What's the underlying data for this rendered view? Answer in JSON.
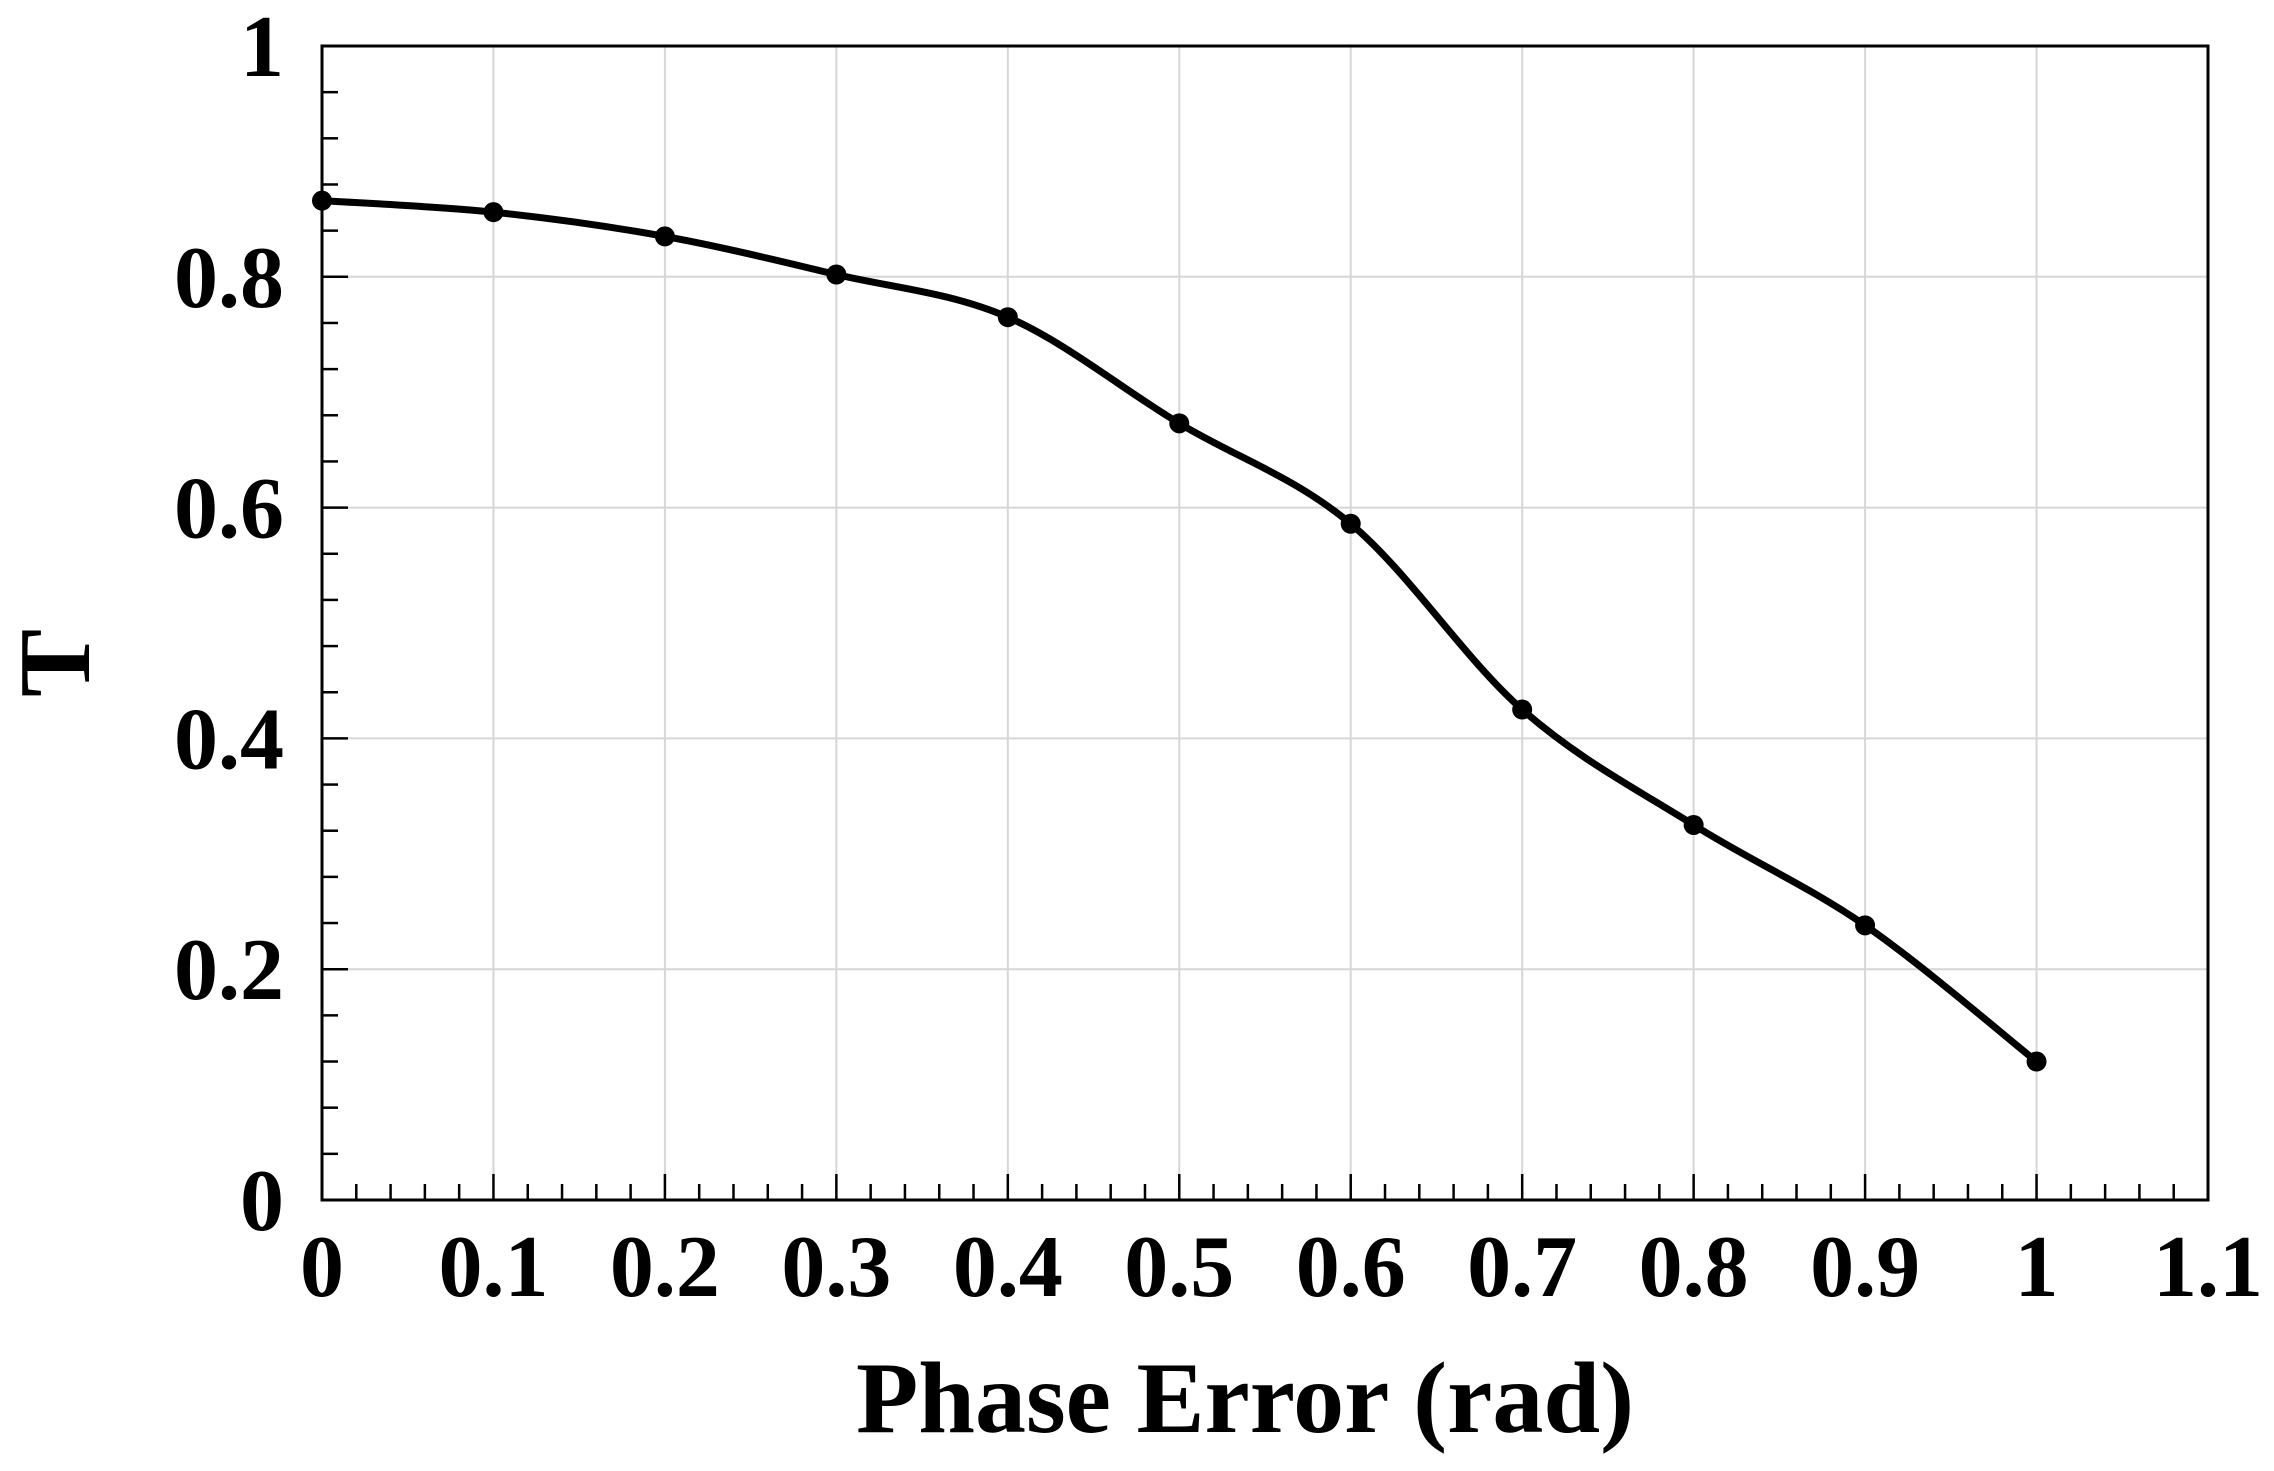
{
  "chart_data": {
    "type": "line",
    "title": "",
    "xlabel": "Phase Error (rad)",
    "ylabel": "T",
    "xlim": [
      0,
      1.1
    ],
    "ylim": [
      0,
      1
    ],
    "x_ticks": [
      0,
      0.1,
      0.2,
      0.3,
      0.4,
      0.5,
      0.6,
      0.7,
      0.8,
      0.9,
      1,
      1.1
    ],
    "x_tick_labels": [
      "0",
      "0.1",
      "0.2",
      "0.3",
      "0.4",
      "0.5",
      "0.6",
      "0.7",
      "0.8",
      "0.9",
      "1",
      "1.1"
    ],
    "y_ticks": [
      0,
      0.2,
      0.4,
      0.6,
      0.8,
      1
    ],
    "y_tick_labels": [
      "0",
      "0.2",
      "0.4",
      "0.6",
      "0.8",
      "1"
    ],
    "x_minor_step": 0.02,
    "y_minor_step": 0.04,
    "grid": true,
    "colors": {
      "series": "#000000",
      "grid": "#d6d6d6",
      "frame": "#000000"
    },
    "series": [
      {
        "x": [
          0,
          0.1,
          0.2,
          0.3,
          0.4,
          0.5,
          0.6,
          0.7,
          0.8,
          0.9,
          1
        ],
        "values": [
          0.866,
          0.856,
          0.835,
          0.802,
          0.765,
          0.673,
          0.586,
          0.425,
          0.325,
          0.238,
          0.12
        ],
        "marker": "circle",
        "smooth": true
      }
    ]
  }
}
